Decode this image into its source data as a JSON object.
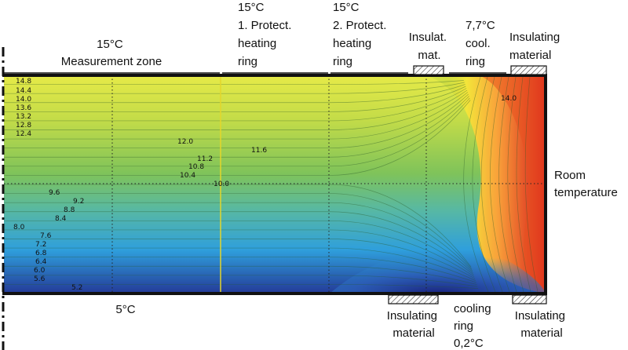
{
  "header_labels": {
    "measurement_zone": [
      "15°C",
      "Measurement zone"
    ],
    "protect_ring_1": [
      "15°C",
      "1. Protect.",
      "heating",
      "ring"
    ],
    "protect_ring_2": [
      "15°C",
      "2. Protect.",
      "heating",
      "ring"
    ],
    "insulation_top_left": [
      "Insulat.",
      "mat."
    ],
    "cooling_ring_top": [
      "7,7°C",
      "cool.",
      "ring"
    ],
    "insulation_top_right": [
      "Insulating",
      "material"
    ]
  },
  "side_labels": {
    "room": [
      "Room",
      "temperature"
    ]
  },
  "footer_labels": {
    "bottom_temp": "5°C",
    "insulation_bottom_left": [
      "Insulating",
      "material"
    ],
    "cooling_ring_bottom": [
      "cooling",
      "ring",
      "0,2°C"
    ],
    "insulation_bottom_right": [
      "Insulating",
      "material"
    ]
  },
  "isotherm_labels": {
    "left_column": [
      "14.8",
      "14.4",
      "14.0",
      "13.6",
      "13.2",
      "12.8",
      "12.4"
    ],
    "diagonal": [
      "12.0",
      "11.6",
      "11.2",
      "10.8",
      "10.4",
      "10.0",
      "9.6",
      "9.2",
      "8.8",
      "8.4",
      "8.0",
      "7.6",
      "7.2",
      "6.8",
      "6.4",
      "6.0",
      "5.6",
      "5.2"
    ],
    "right_top": [
      "14.0"
    ]
  },
  "colors": {
    "hot": "#d7191c",
    "warm": "#fdae61",
    "mid": "#8cc63f",
    "cool": "#2c9fd9",
    "cold": "#253494",
    "top_band": "#e3e84a"
  }
}
